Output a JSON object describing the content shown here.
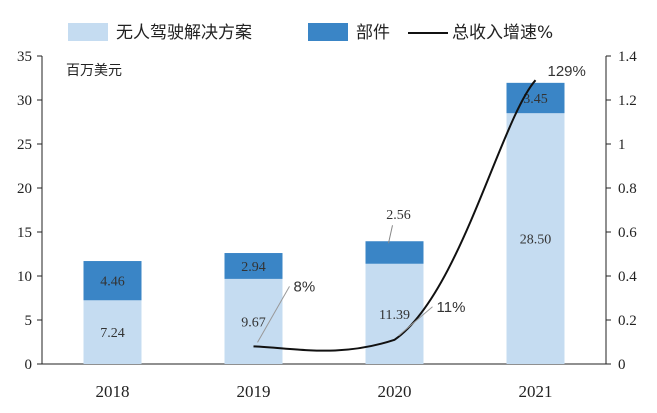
{
  "chart_data": {
    "type": "bar",
    "stacked": true,
    "categories": [
      "2018",
      "2019",
      "2020",
      "2021"
    ],
    "series": [
      {
        "name": "无人驾驶解决方案",
        "values": [
          7.24,
          9.67,
          11.39,
          28.5
        ],
        "labels": [
          "7.24",
          "9.67",
          "11.39",
          "28.50"
        ],
        "color": "#c5dcf1"
      },
      {
        "name": "部件",
        "values": [
          4.46,
          2.94,
          2.56,
          3.45
        ],
        "labels": [
          "4.46",
          "2.94",
          "2.56",
          "3.45"
        ],
        "color": "#3a85c6"
      }
    ],
    "line": {
      "name": "总收入增速%",
      "axis": "right",
      "x": [
        "2019",
        "2020",
        "2021"
      ],
      "values": [
        0.08,
        0.11,
        1.29
      ],
      "labels": [
        "8%",
        "11%",
        "129%"
      ],
      "color": "#111111"
    },
    "y_left": {
      "min": 0,
      "max": 35,
      "step": 5,
      "unit": "百万美元"
    },
    "y_right": {
      "min": 0,
      "max": 1.4,
      "step": 0.2
    }
  }
}
